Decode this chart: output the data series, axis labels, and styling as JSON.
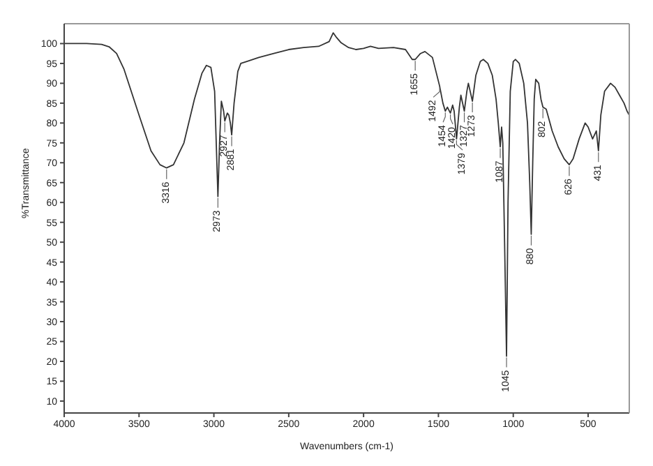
{
  "chart_data": {
    "type": "line",
    "xlabel": "Wavenumbers (cm-1)",
    "ylabel": "%Transmittance",
    "xlim": [
      4000,
      225
    ],
    "ylim": [
      7,
      105
    ],
    "xticks": [
      4000,
      3500,
      3000,
      2500,
      2000,
      1500,
      1000,
      500
    ],
    "yticks": [
      10,
      15,
      20,
      25,
      30,
      35,
      40,
      45,
      50,
      55,
      60,
      65,
      70,
      75,
      80,
      85,
      90,
      95,
      100
    ],
    "marker": "none",
    "line_style": "solid",
    "series": [
      {
        "color": "#333333",
        "x": [
          4000,
          3850,
          3750,
          3700,
          3650,
          3600,
          3500,
          3420,
          3360,
          3316,
          3270,
          3200,
          3130,
          3080,
          3050,
          3020,
          2995,
          2973,
          2962,
          2950,
          2935,
          2927,
          2910,
          2900,
          2890,
          2881,
          2865,
          2840,
          2820,
          2780,
          2700,
          2600,
          2500,
          2400,
          2300,
          2230,
          2203,
          2180,
          2150,
          2100,
          2050,
          2000,
          1954,
          1900,
          1800,
          1720,
          1675,
          1655,
          1620,
          1590,
          1540,
          1492,
          1470,
          1454,
          1440,
          1420,
          1405,
          1395,
          1379,
          1360,
          1350,
          1327,
          1310,
          1300,
          1273,
          1250,
          1220,
          1200,
          1170,
          1140,
          1115,
          1100,
          1087,
          1078,
          1070,
          1058,
          1045,
          1035,
          1020,
          1000,
          985,
          960,
          930,
          905,
          890,
          880,
          870,
          860,
          850,
          830,
          815,
          802,
          780,
          740,
          700,
          660,
          626,
          600,
          560,
          520,
          500,
          470,
          445,
          431,
          415,
          390,
          350,
          320,
          290,
          260,
          240,
          225
        ],
        "values": [
          100,
          100,
          99.8,
          99.2,
          97.5,
          93.5,
          82,
          73,
          69.5,
          68.7,
          69.5,
          75,
          86,
          92.5,
          94.5,
          94,
          88,
          61.5,
          75,
          85.5,
          83,
          80.5,
          82.5,
          82,
          80,
          77,
          85,
          93,
          95,
          95.5,
          96.5,
          97.5,
          98.5,
          99,
          99.3,
          100.5,
          102.7,
          101.5,
          100.2,
          99,
          98.5,
          98.8,
          99.3,
          98.8,
          99,
          98.5,
          96,
          96,
          97.5,
          98,
          96.5,
          89.3,
          85,
          83,
          84,
          82.5,
          84.5,
          83,
          76,
          84,
          87,
          83,
          88,
          90,
          85.5,
          92,
          95.5,
          96,
          95,
          92,
          86,
          80,
          74,
          79,
          75,
          50,
          21.3,
          60,
          88,
          95.5,
          96,
          95,
          90,
          80,
          65,
          52,
          70,
          86,
          91,
          90,
          86,
          84,
          83.5,
          78,
          74,
          71,
          69.5,
          71,
          76,
          80,
          79,
          76,
          78,
          73,
          82,
          88,
          90,
          89,
          87,
          85,
          83,
          82
        ]
      }
    ],
    "annotations": [
      {
        "text": "3316",
        "x": 3316,
        "y": 68.7
      },
      {
        "text": "2973",
        "x": 2973,
        "y": 61.5
      },
      {
        "text": "2927",
        "x": 2927,
        "y": 80.5
      },
      {
        "text": "2881",
        "x": 2881,
        "y": 77
      },
      {
        "text": "1655",
        "x": 1655,
        "y": 96
      },
      {
        "text": "1492",
        "x": 1492,
        "y": 89.3
      },
      {
        "text": "1454",
        "x": 1454,
        "y": 83
      },
      {
        "text": "1420",
        "x": 1420,
        "y": 82.5
      },
      {
        "text": "1379",
        "x": 1379,
        "y": 76
      },
      {
        "text": "1327",
        "x": 1327,
        "y": 83
      },
      {
        "text": "1273",
        "x": 1273,
        "y": 85.5
      },
      {
        "text": "1087",
        "x": 1087,
        "y": 74
      },
      {
        "text": "1045",
        "x": 1045,
        "y": 21.3
      },
      {
        "text": "880",
        "x": 880,
        "y": 52
      },
      {
        "text": "802",
        "x": 802,
        "y": 84
      },
      {
        "text": "626",
        "x": 626,
        "y": 69.5
      },
      {
        "text": "431",
        "x": 431,
        "y": 73
      }
    ]
  }
}
